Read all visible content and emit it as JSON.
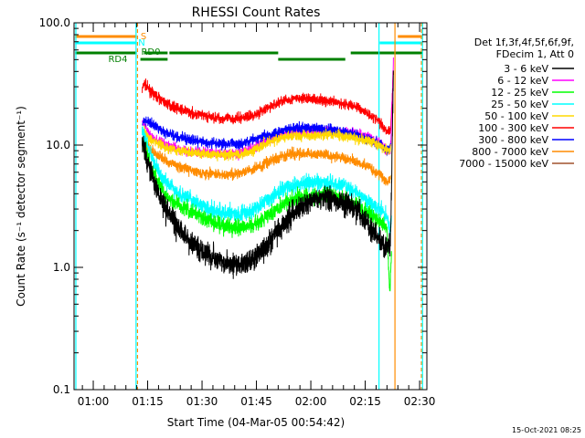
{
  "chart_data": {
    "type": "line",
    "title": "RHESSI Count Rates",
    "xlabel": "Start Time (04-Mar-05 00:54:42)",
    "ylabel": "Count Rate (s⁻¹ detector segment⁻¹)",
    "yscale": "log",
    "ylim": [
      0.1,
      100
    ],
    "xlim": [
      "00:54:42",
      "02:32:00"
    ],
    "x_ticks": [
      "01:00",
      "01:15",
      "01:30",
      "01:45",
      "02:00",
      "02:15",
      "02:30"
    ],
    "y_ticks": [
      "0.1",
      "1.0",
      "10.0",
      "100.0"
    ],
    "x_minutes": [
      60,
      75,
      90,
      105,
      120,
      135,
      150
    ],
    "legend": {
      "header1": "Det 1f,3f,4f,5f,6f,9f,",
      "header2": "FDecim 1, Att 0",
      "placement": "right"
    },
    "series": [
      {
        "name": "3 - 6 keV",
        "color": "#000000",
        "points": [
          [
            73.5,
            10
          ],
          [
            74,
            9
          ],
          [
            76,
            6
          ],
          [
            78,
            4
          ],
          [
            80,
            3
          ],
          [
            84,
            2
          ],
          [
            88,
            1.5
          ],
          [
            92,
            1.25
          ],
          [
            96,
            1.1
          ],
          [
            100,
            1.05
          ],
          [
            104,
            1.15
          ],
          [
            108,
            1.5
          ],
          [
            112,
            2.2
          ],
          [
            116,
            3.0
          ],
          [
            120,
            3.5
          ],
          [
            124,
            3.7
          ],
          [
            128,
            3.5
          ],
          [
            132,
            3.0
          ],
          [
            136,
            2.2
          ],
          [
            139,
            1.7
          ],
          [
            141,
            1.4
          ],
          [
            142,
            1.7
          ],
          [
            142.8,
            45
          ]
        ]
      },
      {
        "name": "6 - 12 keV",
        "color": "#ff00ff",
        "points": [
          [
            73.5,
            16
          ],
          [
            74,
            15
          ],
          [
            76,
            11.5
          ],
          [
            80,
            10
          ],
          [
            84,
            9.2
          ],
          [
            90,
            8.7
          ],
          [
            96,
            8.5
          ],
          [
            100,
            8.5
          ],
          [
            104,
            9.5
          ],
          [
            108,
            11
          ],
          [
            112,
            12.5
          ],
          [
            116,
            13
          ],
          [
            120,
            13
          ],
          [
            124,
            13.2
          ],
          [
            128,
            13
          ],
          [
            132,
            12.5
          ],
          [
            136,
            11.5
          ],
          [
            139,
            10.5
          ],
          [
            141,
            9
          ],
          [
            142,
            9.5
          ],
          [
            142.8,
            50
          ]
        ]
      },
      {
        "name": "12 - 25 keV",
        "color": "#00ff00",
        "points": [
          [
            73.5,
            11
          ],
          [
            74,
            10
          ],
          [
            76,
            6.5
          ],
          [
            78,
            4.8
          ],
          [
            80,
            3.8
          ],
          [
            84,
            3.2
          ],
          [
            88,
            2.8
          ],
          [
            92,
            2.4
          ],
          [
            96,
            2.2
          ],
          [
            100,
            2.1
          ],
          [
            104,
            2.2
          ],
          [
            108,
            2.6
          ],
          [
            112,
            3.2
          ],
          [
            116,
            3.7
          ],
          [
            120,
            3.8
          ],
          [
            124,
            3.9
          ],
          [
            128,
            3.8
          ],
          [
            132,
            3.3
          ],
          [
            136,
            2.8
          ],
          [
            139,
            2.4
          ],
          [
            141,
            2.1
          ],
          [
            141.8,
            0.6
          ],
          [
            142.3,
            1.5
          ]
        ]
      },
      {
        "name": "25 - 50 keV",
        "color": "#00ffff",
        "points": [
          [
            73.5,
            13
          ],
          [
            74,
            12
          ],
          [
            76,
            8
          ],
          [
            78,
            6
          ],
          [
            80,
            5
          ],
          [
            84,
            4
          ],
          [
            88,
            3.4
          ],
          [
            92,
            3.0
          ],
          [
            96,
            2.8
          ],
          [
            100,
            2.7
          ],
          [
            104,
            2.9
          ],
          [
            108,
            3.5
          ],
          [
            112,
            4.3
          ],
          [
            116,
            4.8
          ],
          [
            120,
            4.9
          ],
          [
            124,
            5.0
          ],
          [
            128,
            4.8
          ],
          [
            132,
            4.2
          ],
          [
            136,
            3.5
          ],
          [
            139,
            3.0
          ],
          [
            141,
            2.6
          ],
          [
            141.8,
            2
          ],
          [
            142.3,
            2.5
          ]
        ]
      },
      {
        "name": "50 - 100 keV",
        "color": "#ffd800",
        "points": [
          [
            73.5,
            13
          ],
          [
            74,
            13
          ],
          [
            76,
            11
          ],
          [
            80,
            9.5
          ],
          [
            84,
            9
          ],
          [
            90,
            8.5
          ],
          [
            96,
            8.3
          ],
          [
            100,
            8.3
          ],
          [
            104,
            9
          ],
          [
            108,
            10.5
          ],
          [
            112,
            11.5
          ],
          [
            116,
            12
          ],
          [
            120,
            12
          ],
          [
            124,
            12.2
          ],
          [
            128,
            12
          ],
          [
            132,
            11.5
          ],
          [
            136,
            10.8
          ],
          [
            139,
            10
          ],
          [
            141,
            9
          ],
          [
            142,
            9.2
          ]
        ]
      },
      {
        "name": "100 - 300 keV",
        "color": "#ff0000",
        "points": [
          [
            73.5,
            28
          ],
          [
            74,
            32
          ],
          [
            76,
            27
          ],
          [
            80,
            22
          ],
          [
            84,
            19.5
          ],
          [
            88,
            18
          ],
          [
            92,
            17
          ],
          [
            96,
            16.5
          ],
          [
            100,
            16.5
          ],
          [
            104,
            17.5
          ],
          [
            108,
            20
          ],
          [
            112,
            23
          ],
          [
            116,
            24
          ],
          [
            120,
            24
          ],
          [
            124,
            23
          ],
          [
            128,
            22
          ],
          [
            132,
            21
          ],
          [
            136,
            18
          ],
          [
            139,
            15.5
          ],
          [
            141,
            13
          ],
          [
            142,
            13.5
          ],
          [
            142.8,
            40
          ]
        ]
      },
      {
        "name": "300 - 800 keV",
        "color": "#0000ff",
        "points": [
          [
            73.5,
            15
          ],
          [
            74,
            16
          ],
          [
            76,
            15
          ],
          [
            80,
            12.5
          ],
          [
            84,
            11.5
          ],
          [
            88,
            10.8
          ],
          [
            92,
            10.4
          ],
          [
            96,
            10.2
          ],
          [
            100,
            10.3
          ],
          [
            104,
            11
          ],
          [
            108,
            12
          ],
          [
            112,
            13.2
          ],
          [
            116,
            13.8
          ],
          [
            120,
            13.8
          ],
          [
            124,
            13.5
          ],
          [
            128,
            13
          ],
          [
            132,
            12.2
          ],
          [
            136,
            11.2
          ],
          [
            139,
            10.2
          ],
          [
            141,
            9.2
          ],
          [
            142,
            9.5
          ]
        ]
      },
      {
        "name": "800 - 7000 keV",
        "color": "#ff8c00",
        "points": [
          [
            73.5,
            10
          ],
          [
            74,
            10.5
          ],
          [
            76,
            9
          ],
          [
            80,
            7.5
          ],
          [
            84,
            6.6
          ],
          [
            88,
            6.1
          ],
          [
            92,
            5.8
          ],
          [
            96,
            5.7
          ],
          [
            100,
            5.8
          ],
          [
            104,
            6.3
          ],
          [
            108,
            7.2
          ],
          [
            112,
            8.2
          ],
          [
            116,
            8.6
          ],
          [
            120,
            8.5
          ],
          [
            124,
            8.3
          ],
          [
            128,
            8.0
          ],
          [
            132,
            7.4
          ],
          [
            136,
            6.6
          ],
          [
            139,
            5.8
          ],
          [
            141,
            5.0
          ],
          [
            142,
            5.3
          ]
        ]
      },
      {
        "name": "7000 - 15000 keV",
        "color": "#a0522d",
        "points": []
      }
    ],
    "attenuator_labels": [
      "S",
      "N",
      "RD0",
      "RD4"
    ],
    "corner_stamp": "15-Oct-2021 08:25"
  }
}
